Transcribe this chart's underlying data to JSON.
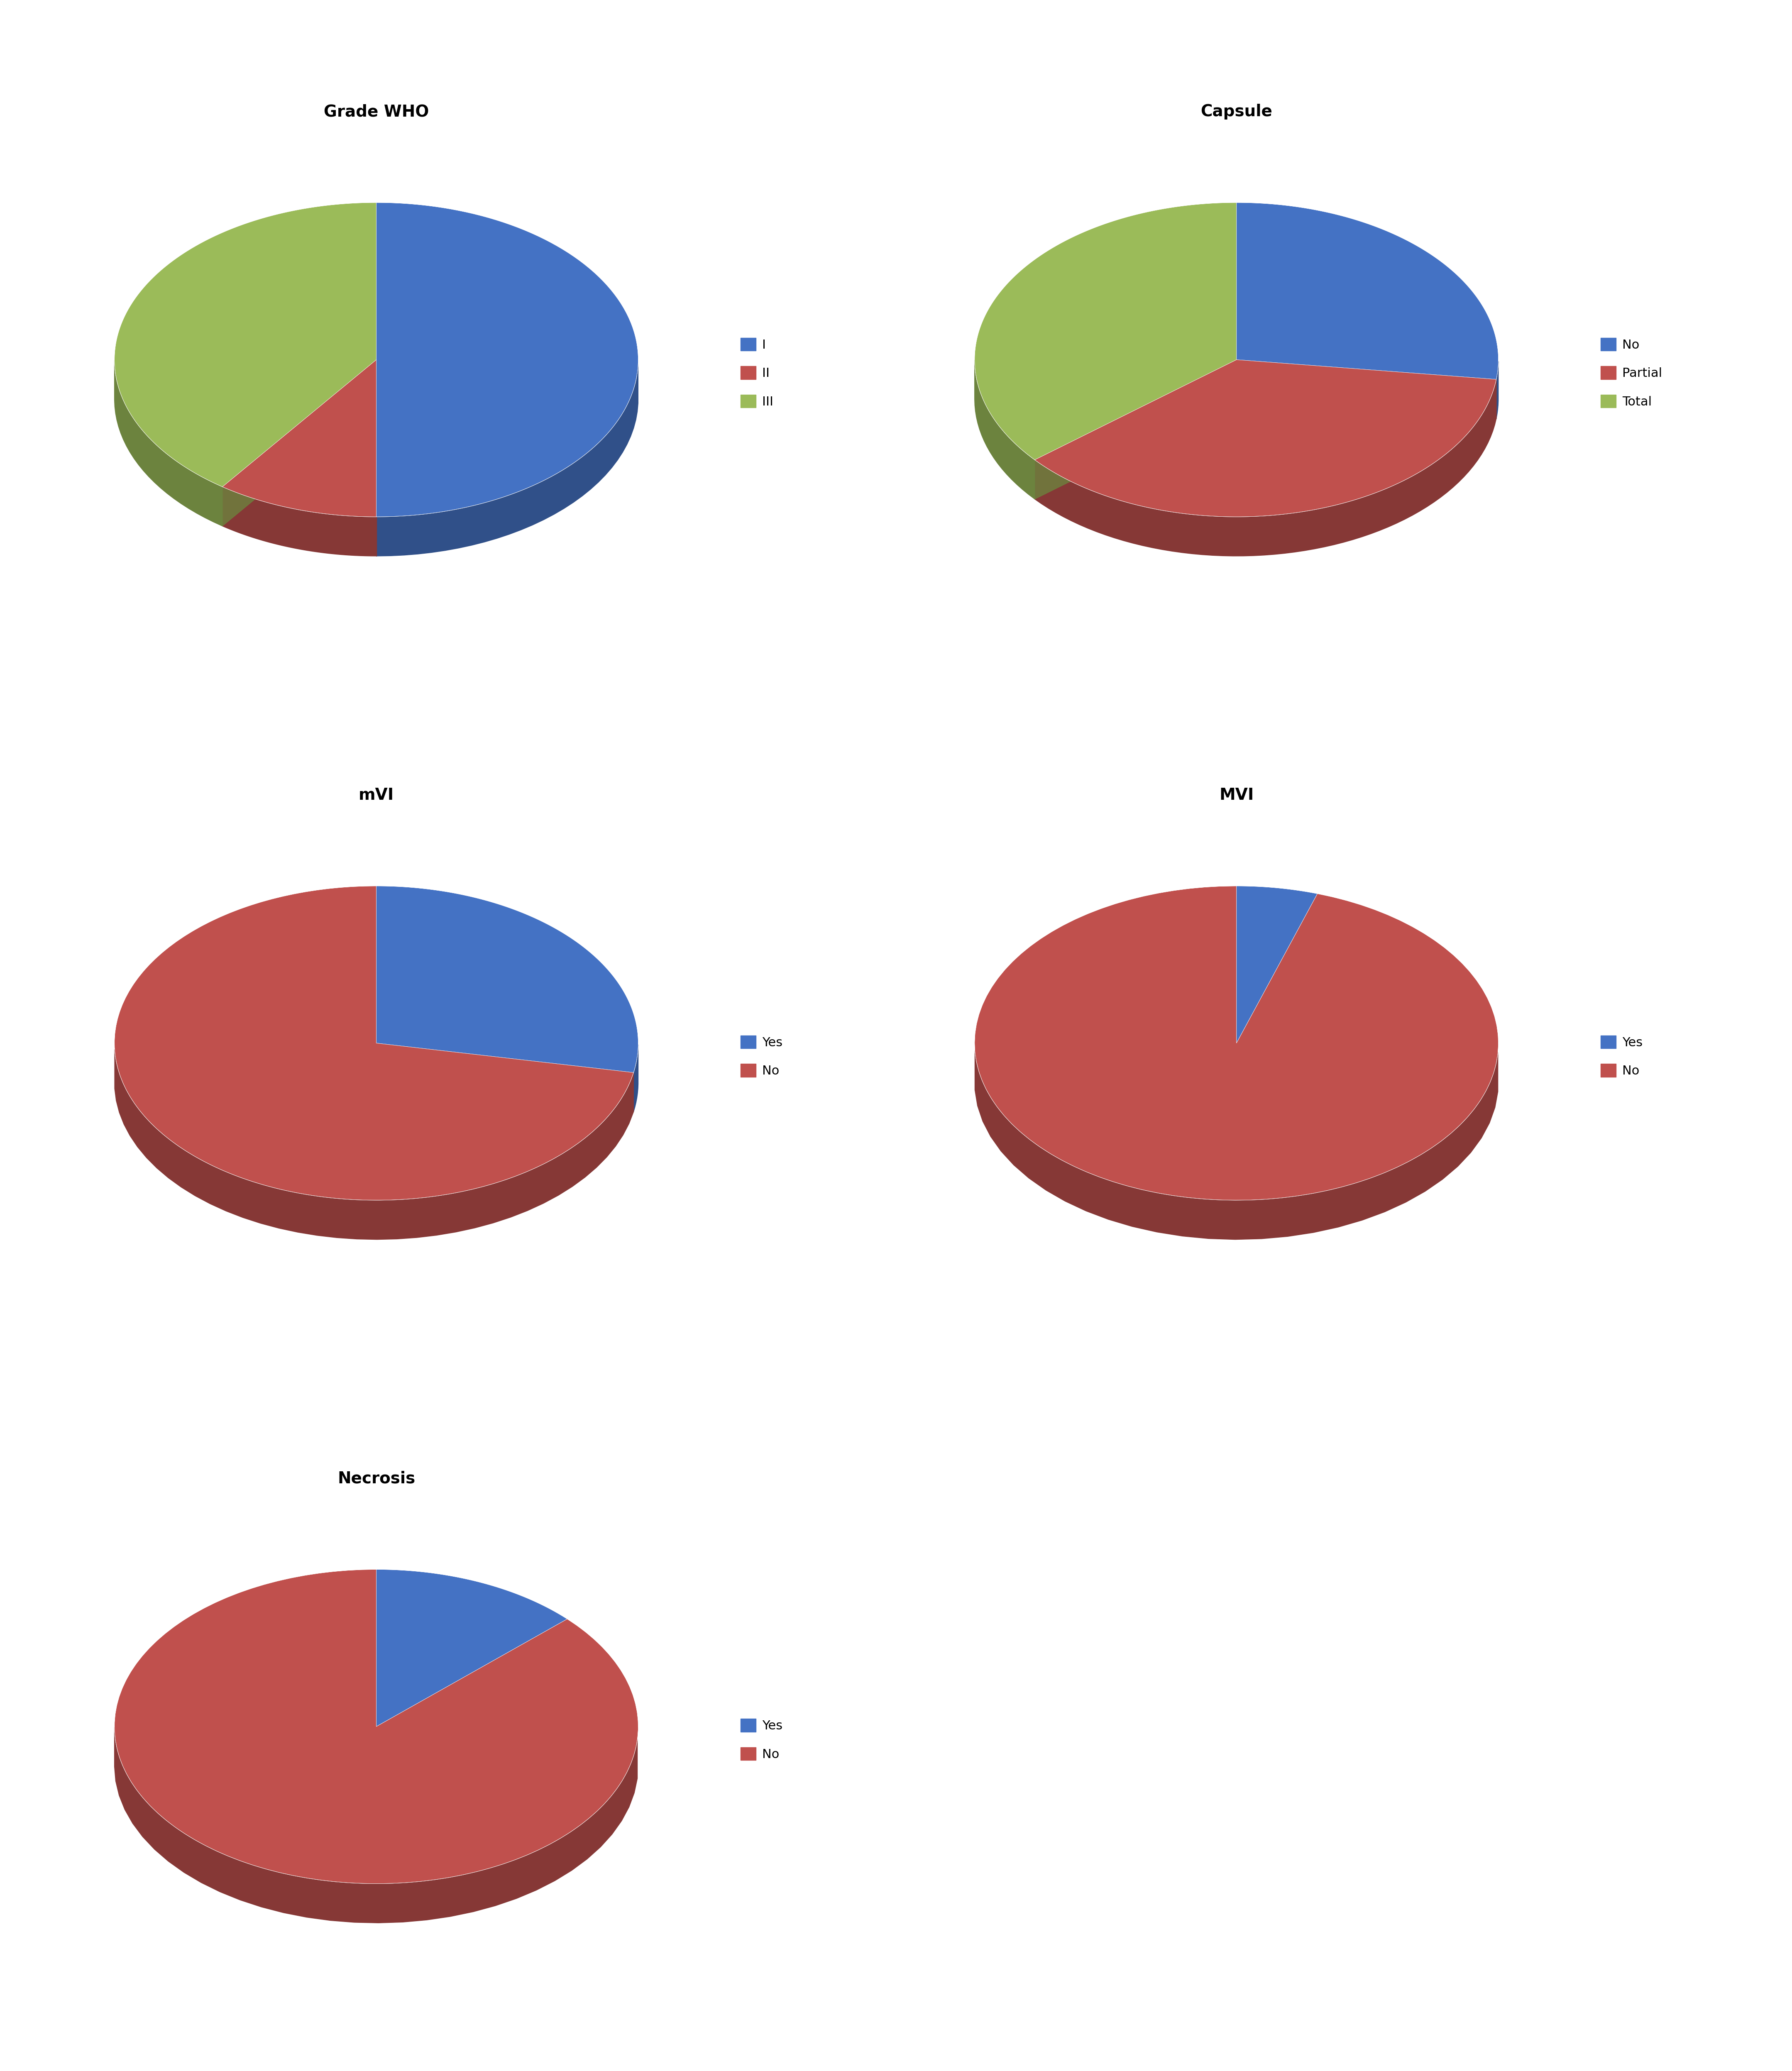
{
  "charts": [
    {
      "title": "Grade WHO",
      "labels": [
        "I",
        "II",
        "III"
      ],
      "values": [
        50,
        10,
        40
      ],
      "colors": [
        "#4472C4",
        "#C0504D",
        "#9BBB59"
      ],
      "legend_labels": [
        "I",
        "II",
        "III"
      ],
      "startangle": 90,
      "row": 0,
      "col": 0
    },
    {
      "title": "Capsule",
      "labels": [
        "No",
        "Partial",
        "Total"
      ],
      "values": [
        27,
        37,
        36
      ],
      "colors": [
        "#4472C4",
        "#C0504D",
        "#9BBB59"
      ],
      "legend_labels": [
        "No",
        "Partial",
        "Total"
      ],
      "startangle": 90,
      "row": 0,
      "col": 1
    },
    {
      "title": "mVI",
      "labels": [
        "Yes",
        "No"
      ],
      "values": [
        28,
        72
      ],
      "colors": [
        "#4472C4",
        "#C0504D"
      ],
      "legend_labels": [
        "Yes",
        "No"
      ],
      "startangle": 90,
      "row": 1,
      "col": 0
    },
    {
      "title": "MVI",
      "labels": [
        "Yes",
        "No"
      ],
      "values": [
        5,
        95
      ],
      "colors": [
        "#4472C4",
        "#C0504D"
      ],
      "legend_labels": [
        "Yes",
        "No"
      ],
      "startangle": 90,
      "row": 1,
      "col": 1
    },
    {
      "title": "Necrosis",
      "labels": [
        "Yes",
        "No"
      ],
      "values": [
        13,
        87
      ],
      "colors": [
        "#4472C4",
        "#C0504D"
      ],
      "legend_labels": [
        "Yes",
        "No"
      ],
      "startangle": 90,
      "row": 2,
      "col": 0
    }
  ],
  "title_fontsize": 28,
  "legend_fontsize": 22,
  "background_color": "#FFFFFF",
  "blue": "#4472C4",
  "red": "#C0504D",
  "green": "#9BBB59"
}
